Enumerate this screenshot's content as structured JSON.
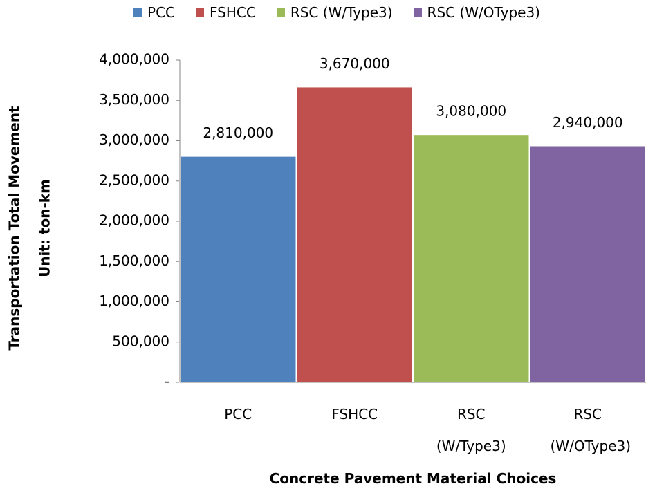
{
  "chart_data": {
    "type": "bar",
    "categories": [
      "PCC",
      "FSHCC",
      "RSC (W/Type3)",
      "RSC (W/OType3)"
    ],
    "values": [
      2810000,
      3670000,
      3080000,
      2940000
    ],
    "value_labels": [
      "2,810,000",
      "3,670,000",
      "3,080,000",
      "2,940,000"
    ],
    "colors": [
      "#4f81bd",
      "#c0504d",
      "#9bbb59",
      "#8064a2"
    ],
    "xlabel": "Concrete Pavement Material Choices",
    "ylabel": [
      "Transportation Total Movement",
      "Unit: ton-km"
    ],
    "ylim": [
      0,
      4000000
    ],
    "yticks": [
      {
        "value": 0,
        "label": "-"
      },
      {
        "value": 500000,
        "label": "500,000"
      },
      {
        "value": 1000000,
        "label": "1,000,000"
      },
      {
        "value": 1500000,
        "label": "1,500,000"
      },
      {
        "value": 2000000,
        "label": "2,000,000"
      },
      {
        "value": 2500000,
        "label": "2,500,000"
      },
      {
        "value": 3000000,
        "label": "3,000,000"
      },
      {
        "value": 3500000,
        "label": "3,500,000"
      },
      {
        "value": 4000000,
        "label": "4,000,000"
      }
    ],
    "legend": "top"
  }
}
